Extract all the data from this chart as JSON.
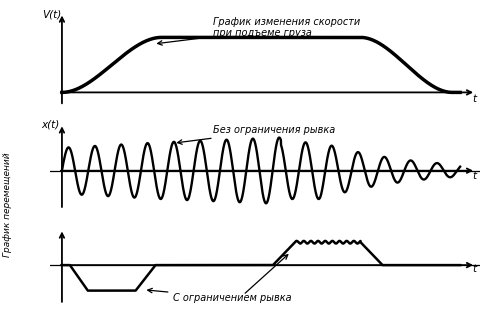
{
  "bg_color": "#ffffff",
  "line_color": "#000000",
  "line_width": 2.0,
  "annotation1": "График изменения скорости\nпри подъеме груза",
  "annotation2": "Без ограничения рывка",
  "annotation3": "С ограничением рывка",
  "label_v": "V(t)",
  "label_x": "x(t)",
  "label_y_rot": "График перемещений",
  "label_t": "t"
}
